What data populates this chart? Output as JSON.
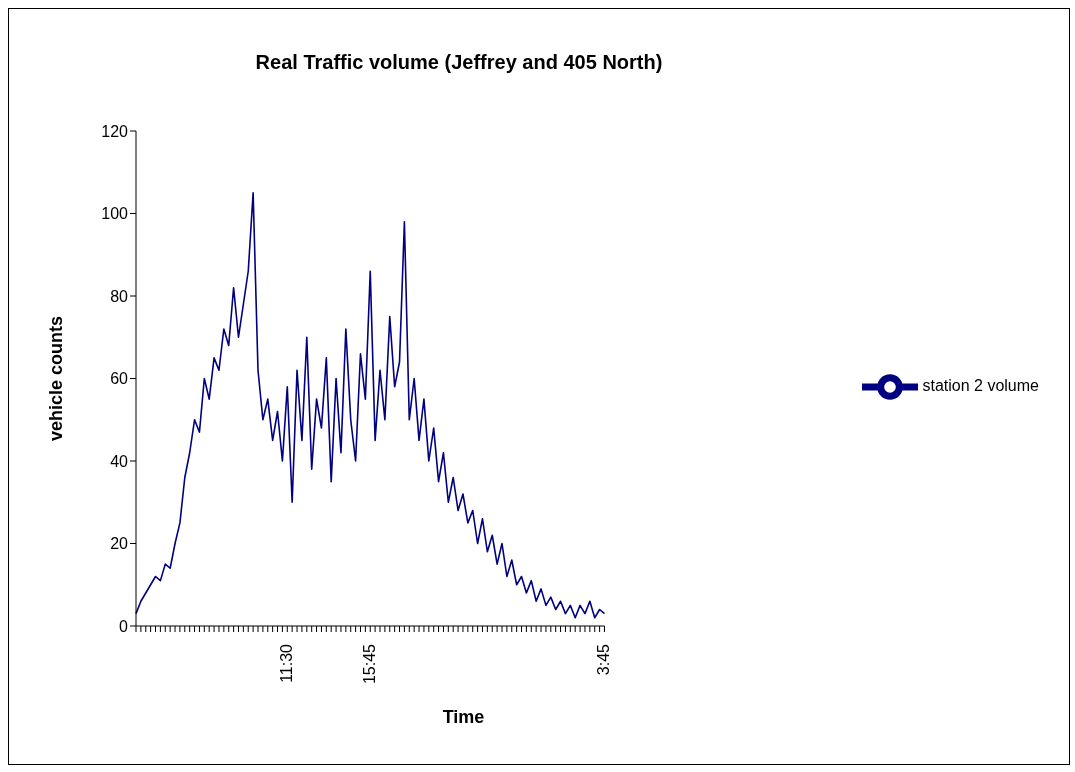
{
  "chart_data": {
    "type": "line",
    "title": "Real Traffic volume (Jeffrey and 405 North)",
    "xlabel": "Time",
    "ylabel": "vehicle counts",
    "categories": [
      null,
      null,
      null,
      null,
      null,
      null,
      null,
      null,
      null,
      null,
      null,
      null,
      null,
      null,
      null,
      null,
      null,
      null,
      null,
      null,
      null,
      null,
      null,
      null,
      null,
      null,
      null,
      null,
      null,
      null,
      null,
      "11:30",
      null,
      null,
      null,
      null,
      null,
      null,
      null,
      null,
      null,
      null,
      null,
      null,
      null,
      null,
      null,
      null,
      "15:45",
      null,
      null,
      null,
      null,
      null,
      null,
      null,
      null,
      null,
      null,
      null,
      null,
      null,
      null,
      null,
      null,
      null,
      null,
      null,
      null,
      null,
      null,
      null,
      null,
      null,
      null,
      null,
      null,
      null,
      null,
      null,
      null,
      null,
      null,
      null,
      null,
      null,
      null,
      null,
      null,
      null,
      null,
      null,
      null,
      null,
      null,
      null,
      "3:45"
    ],
    "series": [
      {
        "name": "station 2 volume",
        "color": "#000080",
        "values": [
          3,
          6,
          8,
          10,
          12,
          11,
          15,
          14,
          20,
          25,
          36,
          42,
          50,
          47,
          60,
          55,
          65,
          62,
          72,
          68,
          82,
          70,
          78,
          86,
          105,
          62,
          50,
          55,
          45,
          52,
          40,
          58,
          30,
          62,
          45,
          70,
          38,
          55,
          48,
          65,
          35,
          60,
          42,
          72,
          50,
          40,
          66,
          55,
          86,
          45,
          62,
          50,
          75,
          58,
          64,
          98,
          50,
          60,
          45,
          55,
          40,
          48,
          35,
          42,
          30,
          36,
          28,
          32,
          25,
          28,
          20,
          26,
          18,
          22,
          15,
          20,
          12,
          16,
          10,
          12,
          8,
          11,
          6,
          9,
          5,
          7,
          4,
          6,
          3,
          5,
          2,
          5,
          3,
          6,
          2,
          4,
          3
        ]
      }
    ],
    "ylim": [
      0,
      120
    ],
    "yticks": [
      0,
      20,
      40,
      60,
      80,
      100,
      120
    ],
    "legend": "right",
    "marker": "none",
    "line_style": "solid"
  }
}
